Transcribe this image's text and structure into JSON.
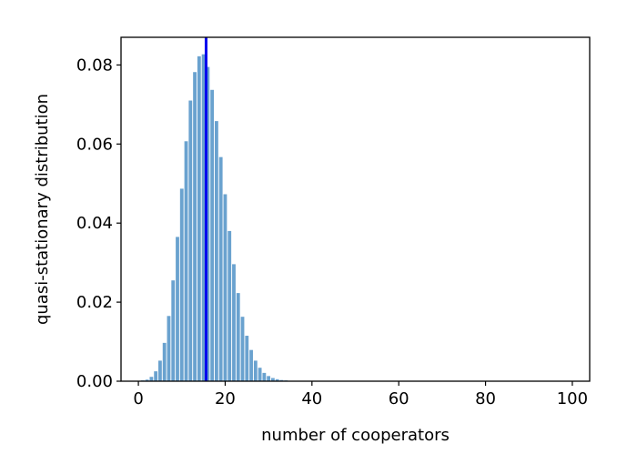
{
  "chart_data": {
    "type": "bar",
    "title": "",
    "xlabel": "number of cooperators",
    "ylabel": "quasi-stationary distribution",
    "xlim": [
      -4,
      104
    ],
    "ylim": [
      0,
      0.087
    ],
    "xticks": [
      0,
      20,
      40,
      60,
      80,
      100
    ],
    "xtick_labels": [
      "0",
      "20",
      "40",
      "60",
      "80",
      "100"
    ],
    "yticks": [
      0.0,
      0.02,
      0.04,
      0.06,
      0.08
    ],
    "ytick_labels": [
      "0.00",
      "0.02",
      "0.04",
      "0.06",
      "0.08"
    ],
    "bar_color": "#6aa2cf",
    "vline": {
      "x": 15.6,
      "color": "#0000ee"
    },
    "x": [
      1,
      2,
      3,
      4,
      5,
      6,
      7,
      8,
      9,
      10,
      11,
      12,
      13,
      14,
      15,
      16,
      17,
      18,
      19,
      20,
      21,
      22,
      23,
      24,
      25,
      26,
      27,
      28,
      29,
      30,
      31,
      32,
      33,
      34,
      35,
      36,
      37,
      38,
      39,
      40
    ],
    "values": [
      0.0002,
      0.0004,
      0.0011,
      0.0025,
      0.0052,
      0.0097,
      0.0165,
      0.0255,
      0.0365,
      0.0487,
      0.0607,
      0.071,
      0.0782,
      0.0822,
      0.0827,
      0.0795,
      0.0737,
      0.0658,
      0.0567,
      0.0473,
      0.038,
      0.0296,
      0.0223,
      0.0163,
      0.0115,
      0.0079,
      0.0052,
      0.0034,
      0.0021,
      0.0013,
      0.0008,
      0.0005,
      0.0003,
      0.0002,
      0.0001,
      6e-05,
      3e-05,
      2e-05,
      1e-05,
      5e-06
    ],
    "grid": false,
    "legend": "none"
  }
}
